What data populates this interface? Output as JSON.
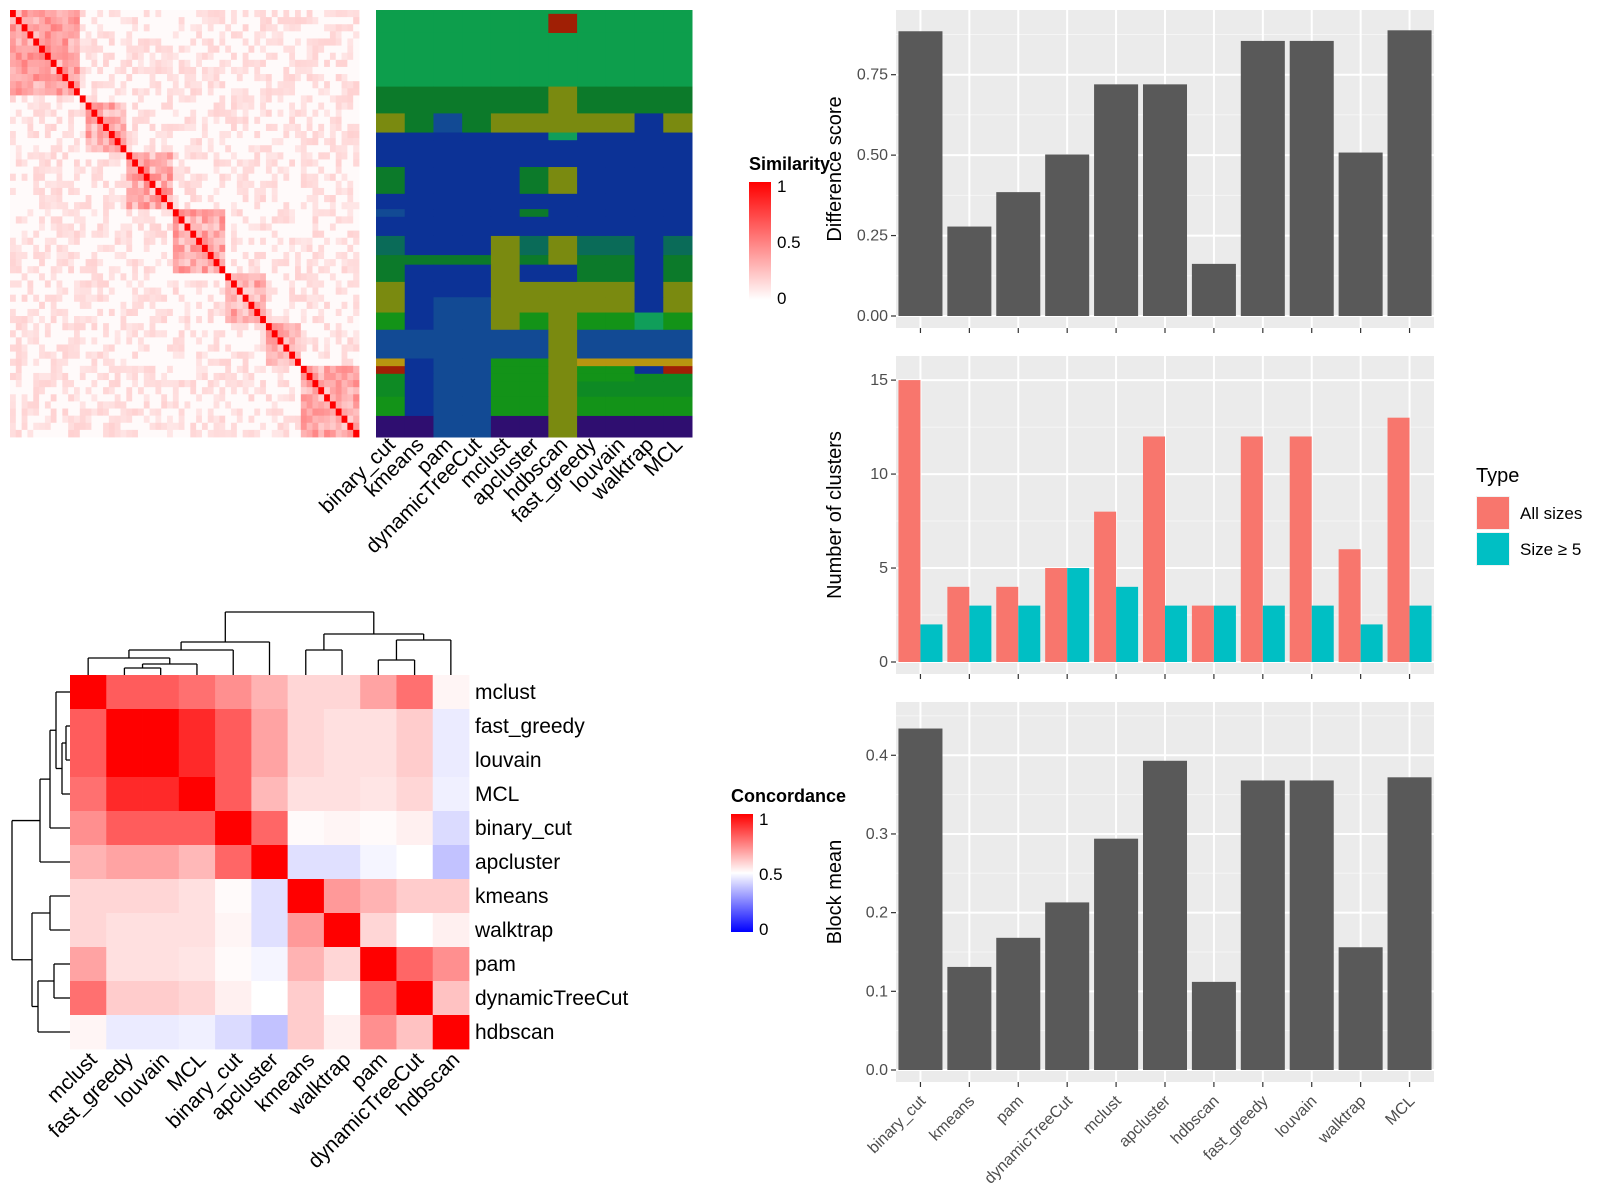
{
  "methods_order": [
    "binary_cut",
    "kmeans",
    "pam",
    "dynamicTreeCut",
    "mclust",
    "apcluster",
    "hdbscan",
    "fast_greedy",
    "louvain",
    "walktrap",
    "MCL"
  ],
  "legends": {
    "similarity": {
      "title": "Similarity",
      "ticks": [
        "1",
        "0.5",
        "0"
      ],
      "colors": [
        "#ffffff",
        "#ff0000"
      ]
    },
    "concordance": {
      "title": "Concordance",
      "ticks": [
        "1",
        "0.5",
        "0"
      ],
      "colors": [
        "#0000ff",
        "#ffffff",
        "#ff0000"
      ]
    },
    "type": {
      "title": "Type",
      "entries": [
        {
          "label": "All sizes",
          "color": "#f8766d"
        },
        {
          "label": "Size ≥ 5",
          "color": "#00bfc4"
        }
      ]
    }
  },
  "similarity_matrix": {
    "n": 60
  },
  "cluster_assignment": {
    "columns": [
      "binary_cut",
      "kmeans",
      "pam",
      "dynamicTreeCut",
      "mclust",
      "apcluster",
      "hdbscan",
      "fast_greedy",
      "louvain",
      "walktrap",
      "MCL"
    ],
    "palette": [
      "#0d9e4c",
      "#0c7a2a",
      "#7a8a10",
      "#0c3296",
      "#124a94",
      "#0a6b58",
      "#0e8a24",
      "#139318",
      "#a01f05",
      "#b89510",
      "#2f0e70",
      "#109e5a"
    ],
    "rows": [
      {
        "h": 1.0,
        "c": [
          0,
          0,
          0,
          0,
          0,
          0,
          0,
          0,
          0,
          0,
          0
        ]
      },
      {
        "h": 5.0,
        "c": [
          0,
          0,
          0,
          0,
          0,
          0,
          8,
          0,
          0,
          0,
          0
        ]
      },
      {
        "h": 14.0,
        "c": [
          0,
          0,
          0,
          0,
          0,
          0,
          0,
          0,
          0,
          0,
          0
        ]
      },
      {
        "h": 7.0,
        "c": [
          1,
          1,
          1,
          1,
          1,
          1,
          2,
          1,
          1,
          1,
          1
        ]
      },
      {
        "h": 5.0,
        "c": [
          2,
          1,
          4,
          1,
          2,
          2,
          2,
          2,
          2,
          3,
          2
        ]
      },
      {
        "h": 2.0,
        "c": [
          3,
          3,
          3,
          3,
          3,
          3,
          11,
          3,
          3,
          3,
          3
        ]
      },
      {
        "h": 7.0,
        "c": [
          3,
          3,
          3,
          3,
          3,
          3,
          3,
          3,
          3,
          3,
          3
        ]
      },
      {
        "h": 7.0,
        "c": [
          1,
          3,
          3,
          3,
          3,
          1,
          2,
          3,
          3,
          3,
          3
        ]
      },
      {
        "h": 4.0,
        "c": [
          3,
          3,
          3,
          3,
          3,
          3,
          3,
          3,
          3,
          3,
          3
        ]
      },
      {
        "h": 2.0,
        "c": [
          4,
          3,
          3,
          3,
          3,
          1,
          3,
          3,
          3,
          3,
          3
        ]
      },
      {
        "h": 5.0,
        "c": [
          3,
          3,
          3,
          3,
          3,
          3,
          3,
          3,
          3,
          3,
          3
        ]
      },
      {
        "h": 5.0,
        "c": [
          5,
          3,
          3,
          3,
          2,
          5,
          2,
          5,
          5,
          3,
          5
        ]
      },
      {
        "h": 2.5,
        "c": [
          1,
          1,
          1,
          1,
          2,
          1,
          2,
          1,
          1,
          3,
          1
        ]
      },
      {
        "h": 4.5,
        "c": [
          1,
          3,
          3,
          3,
          2,
          3,
          3,
          1,
          1,
          3,
          1
        ]
      },
      {
        "h": 4.0,
        "c": [
          2,
          3,
          3,
          3,
          2,
          2,
          2,
          2,
          2,
          3,
          2
        ]
      },
      {
        "h": 4.0,
        "c": [
          2,
          3,
          4,
          4,
          2,
          2,
          2,
          2,
          2,
          3,
          2
        ]
      },
      {
        "h": 4.5,
        "c": [
          7,
          3,
          4,
          4,
          2,
          7,
          2,
          7,
          7,
          11,
          7
        ]
      },
      {
        "h": 7.5,
        "c": [
          4,
          4,
          4,
          4,
          4,
          4,
          2,
          4,
          4,
          4,
          4
        ]
      },
      {
        "h": 2.0,
        "c": [
          9,
          3,
          4,
          4,
          7,
          7,
          2,
          9,
          9,
          9,
          9
        ]
      },
      {
        "h": 2.0,
        "c": [
          8,
          3,
          4,
          4,
          7,
          7,
          2,
          7,
          7,
          3,
          8
        ]
      },
      {
        "h": 2.0,
        "c": [
          6,
          3,
          4,
          4,
          7,
          7,
          2,
          7,
          7,
          6,
          6
        ]
      },
      {
        "h": 4.0,
        "c": [
          6,
          3,
          4,
          4,
          7,
          7,
          2,
          6,
          6,
          6,
          6
        ]
      },
      {
        "h": 5.0,
        "c": [
          7,
          3,
          4,
          4,
          7,
          7,
          2,
          7,
          7,
          7,
          7
        ]
      },
      {
        "h": 5.5,
        "c": [
          10,
          10,
          4,
          4,
          10,
          10,
          2,
          10,
          10,
          10,
          10
        ]
      }
    ]
  },
  "concordance": {
    "rows": [
      "mclust",
      "fast_greedy",
      "louvain",
      "MCL",
      "binary_cut",
      "apcluster",
      "kmeans",
      "walktrap",
      "pam",
      "dynamicTreeCut",
      "hdbscan"
    ],
    "cols": [
      "mclust",
      "fast_greedy",
      "louvain",
      "MCL",
      "binary_cut",
      "apcluster",
      "kmeans",
      "walktrap",
      "pam",
      "dynamicTreeCut",
      "hdbscan"
    ],
    "values": [
      [
        1.0,
        0.82,
        0.82,
        0.78,
        0.72,
        0.65,
        0.58,
        0.58,
        0.68,
        0.78,
        0.52
      ],
      [
        0.82,
        1.0,
        1.0,
        0.92,
        0.82,
        0.68,
        0.58,
        0.56,
        0.56,
        0.6,
        0.46
      ],
      [
        0.82,
        1.0,
        1.0,
        0.92,
        0.82,
        0.68,
        0.58,
        0.56,
        0.56,
        0.6,
        0.46
      ],
      [
        0.78,
        0.92,
        0.92,
        1.0,
        0.82,
        0.64,
        0.56,
        0.56,
        0.55,
        0.58,
        0.47
      ],
      [
        0.72,
        0.82,
        0.82,
        0.82,
        1.0,
        0.8,
        0.51,
        0.52,
        0.51,
        0.53,
        0.43
      ],
      [
        0.65,
        0.68,
        0.68,
        0.64,
        0.8,
        1.0,
        0.44,
        0.44,
        0.48,
        0.5,
        0.38
      ],
      [
        0.58,
        0.58,
        0.58,
        0.56,
        0.51,
        0.44,
        1.0,
        0.7,
        0.65,
        0.6,
        0.6
      ],
      [
        0.58,
        0.56,
        0.56,
        0.56,
        0.52,
        0.44,
        0.7,
        1.0,
        0.58,
        0.5,
        0.53
      ],
      [
        0.68,
        0.56,
        0.56,
        0.55,
        0.51,
        0.48,
        0.65,
        0.58,
        1.0,
        0.8,
        0.72
      ],
      [
        0.78,
        0.6,
        0.6,
        0.58,
        0.53,
        0.5,
        0.6,
        0.5,
        0.8,
        1.0,
        0.62
      ],
      [
        0.52,
        0.46,
        0.46,
        0.47,
        0.43,
        0.38,
        0.6,
        0.53,
        0.72,
        0.62,
        1.0
      ]
    ]
  },
  "chart_data": [
    {
      "type": "bar",
      "categories": [
        "binary_cut",
        "kmeans",
        "pam",
        "dynamicTreeCut",
        "mclust",
        "apcluster",
        "hdbscan",
        "fast_greedy",
        "louvain",
        "walktrap",
        "MCL"
      ],
      "values": [
        0.885,
        0.278,
        0.385,
        0.502,
        0.72,
        0.72,
        0.162,
        0.855,
        0.855,
        0.508,
        0.888
      ],
      "ylabel": "Difference score",
      "ylim": [
        0,
        0.92
      ],
      "ticks": [
        0,
        0.25,
        0.5,
        0.75
      ],
      "tick_labels": [
        "0.00",
        "0.25",
        "0.50",
        "0.75"
      ],
      "color": "#595959"
    },
    {
      "type": "bar",
      "categories": [
        "binary_cut",
        "kmeans",
        "pam",
        "dynamicTreeCut",
        "mclust",
        "apcluster",
        "hdbscan",
        "fast_greedy",
        "louvain",
        "walktrap",
        "MCL"
      ],
      "series": [
        {
          "name": "All sizes",
          "values": [
            15,
            4,
            4,
            5,
            8,
            12,
            3,
            12,
            12,
            6,
            13
          ],
          "color": "#f8766d"
        },
        {
          "name": "Size ≥ 5",
          "values": [
            2,
            3,
            3,
            5,
            4,
            3,
            3,
            3,
            3,
            2,
            3
          ],
          "color": "#00bfc4"
        }
      ],
      "ylabel": "Number of clusters",
      "ylim": [
        0,
        15.75
      ],
      "ticks": [
        0,
        5,
        10,
        15
      ],
      "tick_labels": [
        "0",
        "5",
        "10",
        "15"
      ]
    },
    {
      "type": "bar",
      "categories": [
        "binary_cut",
        "kmeans",
        "pam",
        "dynamicTreeCut",
        "mclust",
        "apcluster",
        "hdbscan",
        "fast_greedy",
        "louvain",
        "walktrap",
        "MCL"
      ],
      "values": [
        0.434,
        0.131,
        0.168,
        0.213,
        0.294,
        0.393,
        0.112,
        0.368,
        0.368,
        0.156,
        0.372
      ],
      "ylabel": "Block mean",
      "ylim": [
        0,
        0.455
      ],
      "ticks": [
        0,
        0.1,
        0.2,
        0.3,
        0.4
      ],
      "tick_labels": [
        "0.0",
        "0.1",
        "0.2",
        "0.3",
        "0.4"
      ],
      "color": "#595959"
    }
  ]
}
